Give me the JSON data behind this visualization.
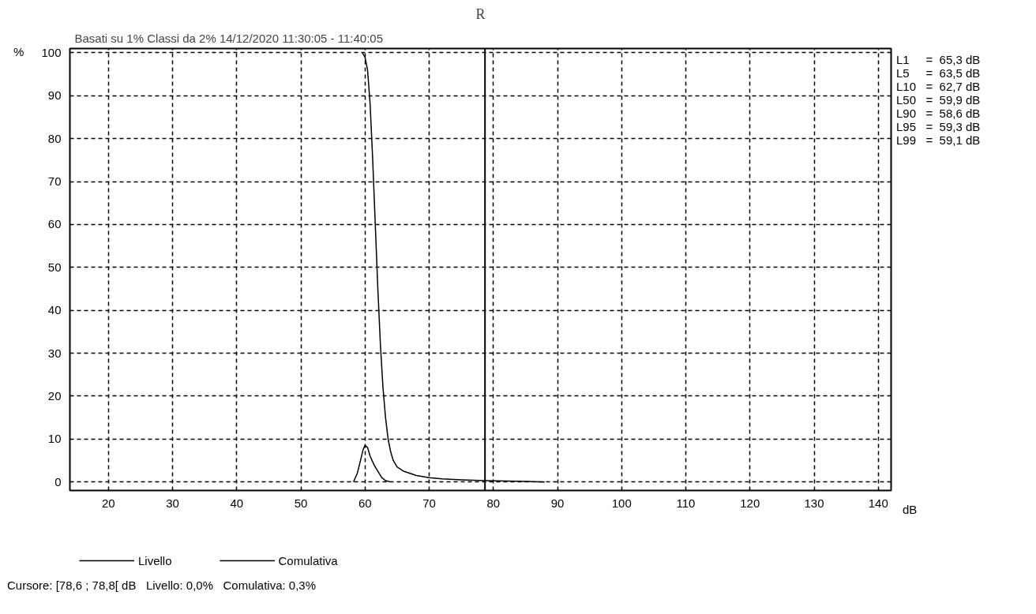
{
  "chart_data": {
    "type": "line",
    "title": "R",
    "subtitle": "Basati su 1%   Classi da 2%   14/12/2020 11:30:05 - 11:40:05",
    "xlabel": "dB",
    "ylabel": "%",
    "series": [
      {
        "name": "Livello",
        "color": "#000000",
        "x": [
          58.2,
          58.8,
          59.3,
          59.7,
          60,
          60.4,
          60.8,
          61.4,
          62,
          62.6,
          63.2,
          64
        ],
        "values": [
          0,
          2,
          5,
          7.5,
          8.5,
          8,
          6,
          4,
          2.5,
          1,
          0.3,
          0
        ]
      },
      {
        "name": "Comulativa",
        "color": "#000000",
        "x": [
          59.6,
          60,
          60.4,
          60.8,
          61.2,
          61.6,
          62,
          62.4,
          62.8,
          63.2,
          63.6,
          64,
          64.4,
          65,
          66,
          68,
          70,
          72,
          75,
          78.6,
          82,
          85,
          88
        ],
        "values": [
          100,
          99,
          96,
          88,
          75,
          60,
          45,
          32,
          22,
          15,
          10,
          7,
          5,
          3.5,
          2.5,
          1.5,
          1,
          0.7,
          0.5,
          0.3,
          0.2,
          0.1,
          0
        ]
      }
    ],
    "xlim": [
      14,
      142
    ],
    "ylim": [
      -2,
      101
    ],
    "xticks": [
      20,
      30,
      40,
      50,
      60,
      70,
      80,
      90,
      100,
      110,
      120,
      130,
      140
    ],
    "yticks": [
      0,
      10,
      20,
      30,
      40,
      50,
      60,
      70,
      80,
      90,
      100
    ],
    "ref_lines": [
      {
        "axis": "x",
        "value": 78.7,
        "color": "#000000",
        "line_style": "solid"
      }
    ],
    "grid": true,
    "legend": "bottom",
    "line_style": "solid",
    "marker": "none",
    "annotations": [
      "L1     =  65,3 dB",
      "L5     =  63,5 dB",
      "L10   =  62,7 dB",
      "L50   =  59,9 dB",
      "L90   =  58,6 dB",
      "L95   =  59,3 dB",
      "L99   =  59,1 dB",
      "Cursore: [78,6 ; 78,8[ dB   Livello: 0,0%   Comulativa: 0,3%"
    ]
  }
}
